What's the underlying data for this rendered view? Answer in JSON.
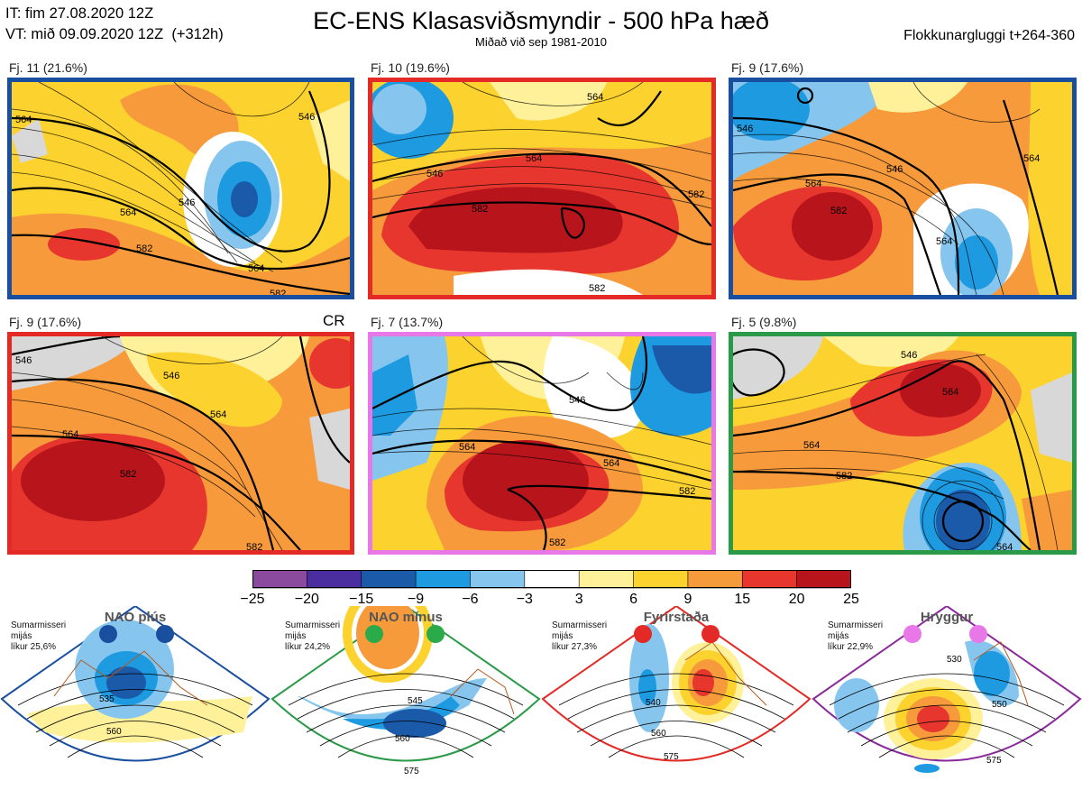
{
  "header": {
    "it_line": "IT: fim 27.08.2020 12Z",
    "vt_line": "VT: mið 09.09.2020 12Z  (+312h)",
    "title": "EC-ENS Klasasviðsmyndir - 500 hPa hæð",
    "subtitle": "Miðað við sep 1981-2010",
    "window_label": "Flokkunargluggi t+264-360"
  },
  "panels": [
    {
      "label": "Fj. 11 (21.6%)",
      "border": "#1a4fa0",
      "contours": [
        "564",
        "546",
        "546",
        "564",
        "582",
        "564",
        "582"
      ]
    },
    {
      "label": "Fj. 10 (19.6%)",
      "border": "#e42a26",
      "contours": [
        "564",
        "546",
        "564",
        "582",
        "582",
        "582"
      ]
    },
    {
      "label": "Fj. 9 (17.6%)",
      "border": "#1a4fa0",
      "contours": [
        "546",
        "564",
        "546",
        "582",
        "564",
        "564"
      ]
    },
    {
      "label": "Fj. 9 (17.6%)",
      "border": "#e42a26",
      "contours": [
        "546",
        "546",
        "564",
        "564",
        "582",
        "582"
      ],
      "badge": "CR"
    },
    {
      "label": "Fj. 7 (13.7%)",
      "border": "#e878e8",
      "contours": [
        "564",
        "546",
        "564",
        "582",
        "582"
      ]
    },
    {
      "label": "Fj. 5 (9.8%)",
      "border": "#2a9a48",
      "contours": [
        "546",
        "564",
        "564",
        "582",
        "564"
      ]
    }
  ],
  "colorbar": {
    "colors": [
      "#8b4a9e",
      "#4a2ea0",
      "#1a5aa8",
      "#1e9ae0",
      "#86c6ee",
      "#ffffff",
      "#fff19a",
      "#fcd22e",
      "#f69a3c",
      "#e6362e",
      "#b8141c"
    ],
    "ticks": [
      "−25",
      "−20",
      "−15",
      "−9",
      "−6",
      "−3",
      "3",
      "6",
      "9",
      "15",
      "20",
      "25"
    ]
  },
  "regimes": [
    {
      "title": "NAO plús",
      "small_lines": [
        "Sumarmisseri",
        "mijás",
        "líkur 25,6%"
      ],
      "border": "#1a4fa0",
      "dot": "#1a4fa0",
      "contours": [
        "535",
        "560"
      ]
    },
    {
      "title": "NAO mínus",
      "small_lines": [
        "Sumarmisseri",
        "mijás",
        "líkur 24,2%"
      ],
      "border": "#2a9a48",
      "dot": "#2aaa48",
      "contours": [
        "545",
        "560",
        "575"
      ]
    },
    {
      "title": "Fyrirstaða",
      "small_lines": [
        "Sumarmisseri",
        "mijás",
        "líkur 27,3%"
      ],
      "border": "#e42a26",
      "dot": "#e42a26",
      "contours": [
        "540",
        "560",
        "575"
      ]
    },
    {
      "title": "Hryggur",
      "small_lines": [
        "Sumarmisseri",
        "mijás",
        "líkur 22,9%"
      ],
      "border": "#8a2a9a",
      "dot": "#e878e8",
      "contours": [
        "530",
        "550",
        "575"
      ]
    }
  ]
}
